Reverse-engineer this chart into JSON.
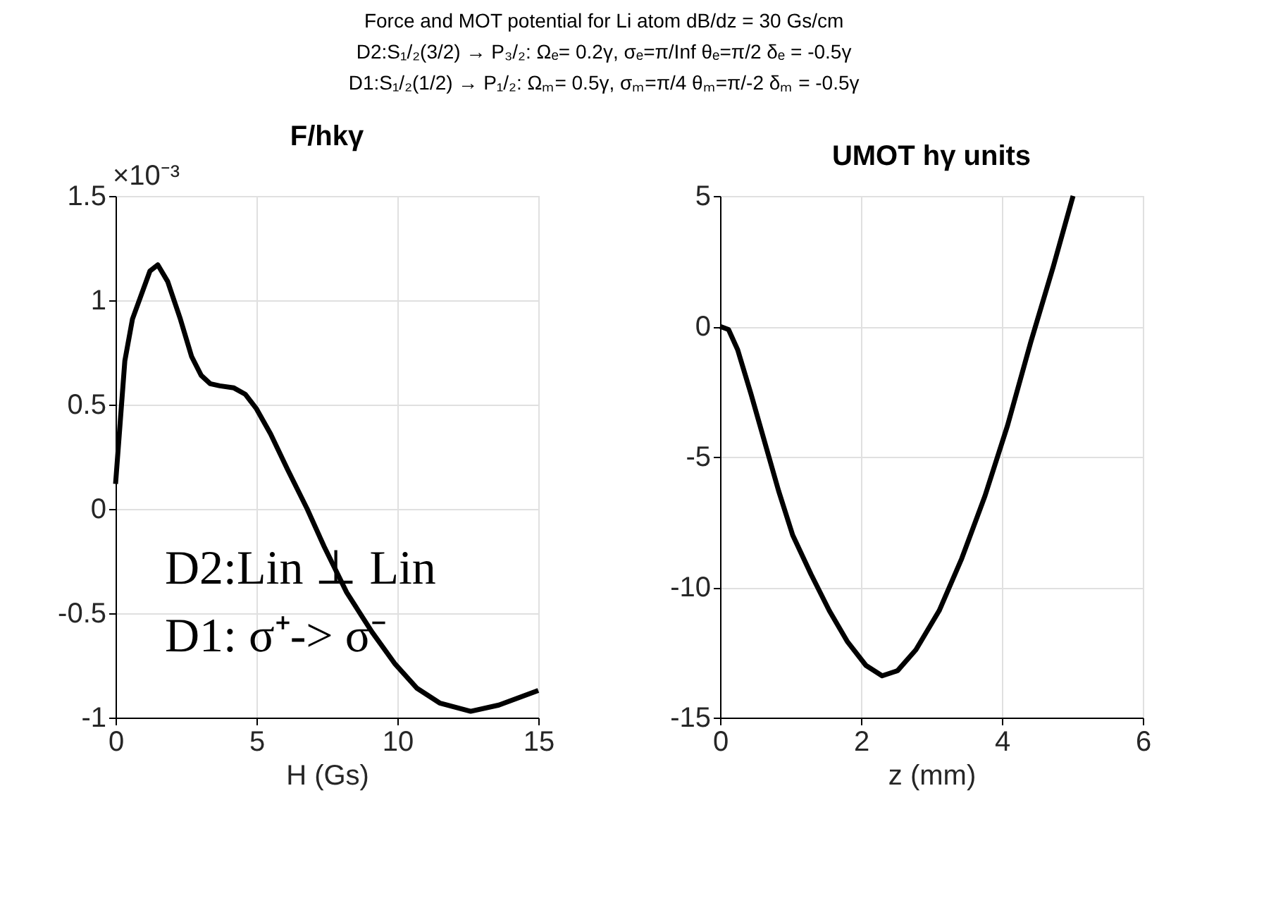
{
  "chart_data": [
    {
      "type": "line",
      "title": "F/hkγ",
      "xlabel": "H (Gs)",
      "xlim": [
        0,
        15
      ],
      "xticks": [
        0,
        5,
        10,
        15
      ],
      "ylim": [
        -1,
        1.5
      ],
      "yticks": [
        -1,
        -0.5,
        0,
        0.5,
        1,
        1.5
      ],
      "grid": true,
      "line_style": "solid",
      "marker": "none",
      "annotations": [
        "Force and MOT potential for Li atom  dB/dz = 30 Gs/cm",
        "D2:S₁/₂(3/2) → P₃/₂: Ωₑ= 0.2γ,  σₑ=π/Inf  θₑ=π/2  δₑ = -0.5γ",
        "D1:S₁/₂(1/2) → P₁/₂: Ωₘ= 0.5γ,  σₘ=π/4  θₘ=π/-2  δₘ = -0.5γ",
        "×10⁻³",
        "D2:Lin ⊥ Lin",
        "D1: σ⁺-> σ⁻"
      ],
      "series": [
        {
          "color": "#000000",
          "x": [
            0,
            0.33,
            0.6,
            1.22,
            1.5,
            1.85,
            2.3,
            2.7,
            3.04,
            3.36,
            3.7,
            4.2,
            4.6,
            5.0,
            5.5,
            6.1,
            6.8,
            7.4,
            8.2,
            9.1,
            9.9,
            10.7,
            11.5,
            12.6,
            13.6,
            15
          ],
          "values": [
            0.12,
            0.71,
            0.91,
            1.14,
            1.17,
            1.09,
            0.91,
            0.73,
            0.64,
            0.6,
            0.59,
            0.58,
            0.55,
            0.48,
            0.36,
            0.19,
            0.0,
            -0.18,
            -0.4,
            -0.59,
            -0.74,
            -0.86,
            -0.93,
            -0.97,
            -0.94,
            -0.87
          ]
        }
      ]
    },
    {
      "type": "line",
      "title": "UMOT hγ units",
      "xlabel": "z (mm)",
      "xlim": [
        0,
        6
      ],
      "xticks": [
        0,
        2,
        4,
        6
      ],
      "ylim": [
        -15,
        5
      ],
      "yticks": [
        -15,
        -10,
        -5,
        0,
        5
      ],
      "grid": true,
      "line_style": "solid",
      "marker": "none",
      "series": [
        {
          "color": "#000000",
          "x": [
            0,
            0.12,
            0.25,
            0.44,
            0.64,
            0.83,
            1.03,
            1.29,
            1.55,
            1.81,
            2.07,
            2.3,
            2.52,
            2.78,
            3.11,
            3.43,
            3.76,
            4.08,
            4.41,
            4.73,
            5.01
          ],
          "values": [
            0,
            -0.12,
            -0.9,
            -2.6,
            -4.5,
            -6.3,
            -8.0,
            -9.5,
            -10.9,
            -12.1,
            -13.0,
            -13.4,
            -13.2,
            -12.4,
            -10.9,
            -8.9,
            -6.5,
            -3.8,
            -0.6,
            2.3,
            5.0
          ]
        }
      ]
    }
  ]
}
